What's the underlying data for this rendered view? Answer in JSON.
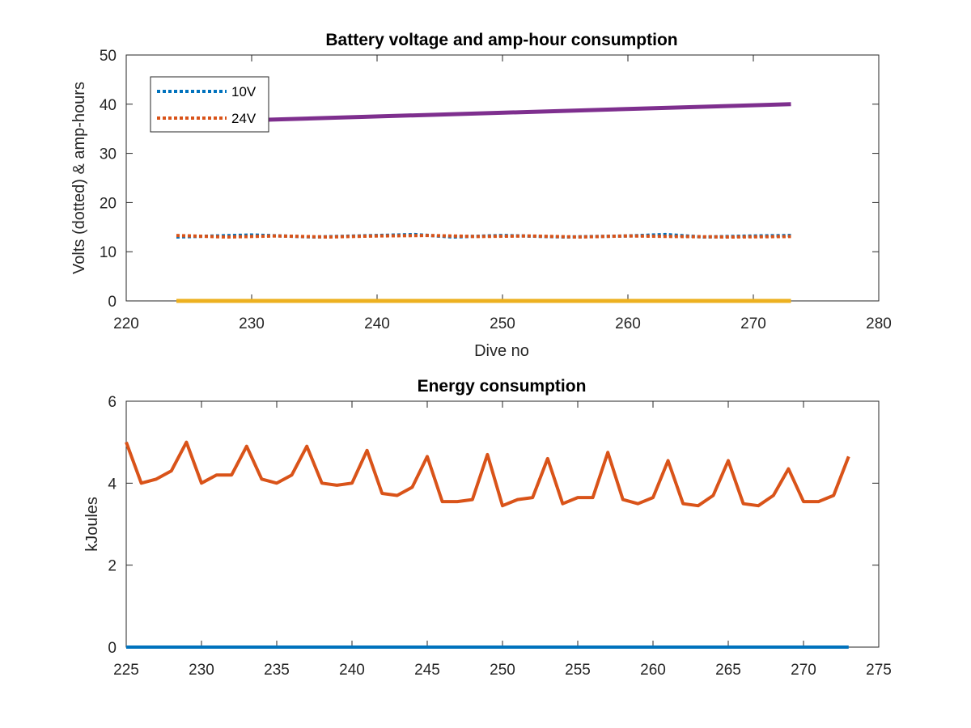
{
  "chart_data": [
    {
      "type": "line",
      "title": "Battery voltage and amp-hour consumption",
      "xlabel": "Dive no",
      "ylabel": "Volts (dotted) & amp-hours",
      "xlim": [
        220,
        280
      ],
      "ylim": [
        0,
        50
      ],
      "xticks": [
        "220",
        "230",
        "240",
        "250",
        "260",
        "270",
        "280"
      ],
      "yticks": [
        "0",
        "10",
        "20",
        "30",
        "40",
        "50"
      ],
      "legend_placement": "top-left",
      "series": [
        {
          "name": "10V",
          "style": "dotted",
          "color": "#0072BD",
          "x": [
            224,
            230,
            235,
            240,
            243,
            246,
            250,
            255,
            260,
            263,
            266,
            270,
            273
          ],
          "y": [
            13.0,
            13.4,
            13.0,
            13.3,
            13.5,
            13.0,
            13.3,
            13.0,
            13.2,
            13.5,
            13.0,
            13.2,
            13.3
          ]
        },
        {
          "name": "24V",
          "style": "dotted",
          "color": "#D95319",
          "x": [
            224,
            228,
            232,
            236,
            240,
            244,
            248,
            252,
            256,
            260,
            264,
            268,
            273
          ],
          "y": [
            13.3,
            13.0,
            13.2,
            13.0,
            13.2,
            13.3,
            13.1,
            13.2,
            13.0,
            13.2,
            13.1,
            13.0,
            13.1
          ]
        },
        {
          "style": "solid",
          "color": "#7E2F8E",
          "x": [
            224,
            273
          ],
          "y": [
            36.3,
            40.0
          ]
        },
        {
          "style": "solid",
          "color": "#EDB120",
          "x": [
            224,
            273
          ],
          "y": [
            0,
            0
          ]
        }
      ]
    },
    {
      "type": "line",
      "title": "Energy consumption",
      "xlabel": "",
      "ylabel": "kJoules",
      "xlim": [
        225,
        275
      ],
      "ylim": [
        0,
        6
      ],
      "xticks": [
        "225",
        "230",
        "235",
        "240",
        "245",
        "250",
        "255",
        "260",
        "265",
        "270",
        "275"
      ],
      "yticks": [
        "0",
        "2",
        "4",
        "6"
      ],
      "series": [
        {
          "style": "solid",
          "color": "#D95319",
          "x": [
            225,
            226,
            227,
            228,
            229,
            230,
            231,
            232,
            233,
            234,
            235,
            236,
            237,
            238,
            239,
            240,
            241,
            242,
            243,
            244,
            245,
            246,
            247,
            248,
            249,
            250,
            251,
            252,
            253,
            254,
            255,
            256,
            257,
            258,
            259,
            260,
            261,
            262,
            263,
            264,
            265,
            266,
            267,
            268,
            269,
            270,
            271,
            272,
            273
          ],
          "y": [
            5.0,
            4.0,
            4.1,
            4.3,
            5.0,
            4.0,
            4.2,
            4.2,
            4.9,
            4.1,
            4.0,
            4.2,
            4.9,
            4.0,
            3.95,
            4.0,
            4.8,
            3.75,
            3.7,
            3.9,
            4.65,
            3.55,
            3.55,
            3.6,
            4.7,
            3.45,
            3.6,
            3.65,
            4.6,
            3.5,
            3.65,
            3.65,
            4.75,
            3.6,
            3.5,
            3.65,
            4.55,
            3.5,
            3.45,
            3.7,
            4.55,
            3.5,
            3.45,
            3.7,
            4.35,
            3.55,
            3.55,
            3.7,
            4.65
          ]
        },
        {
          "style": "solid",
          "color": "#0072BD",
          "x": [
            225,
            273
          ],
          "y": [
            0,
            0
          ]
        }
      ]
    }
  ]
}
